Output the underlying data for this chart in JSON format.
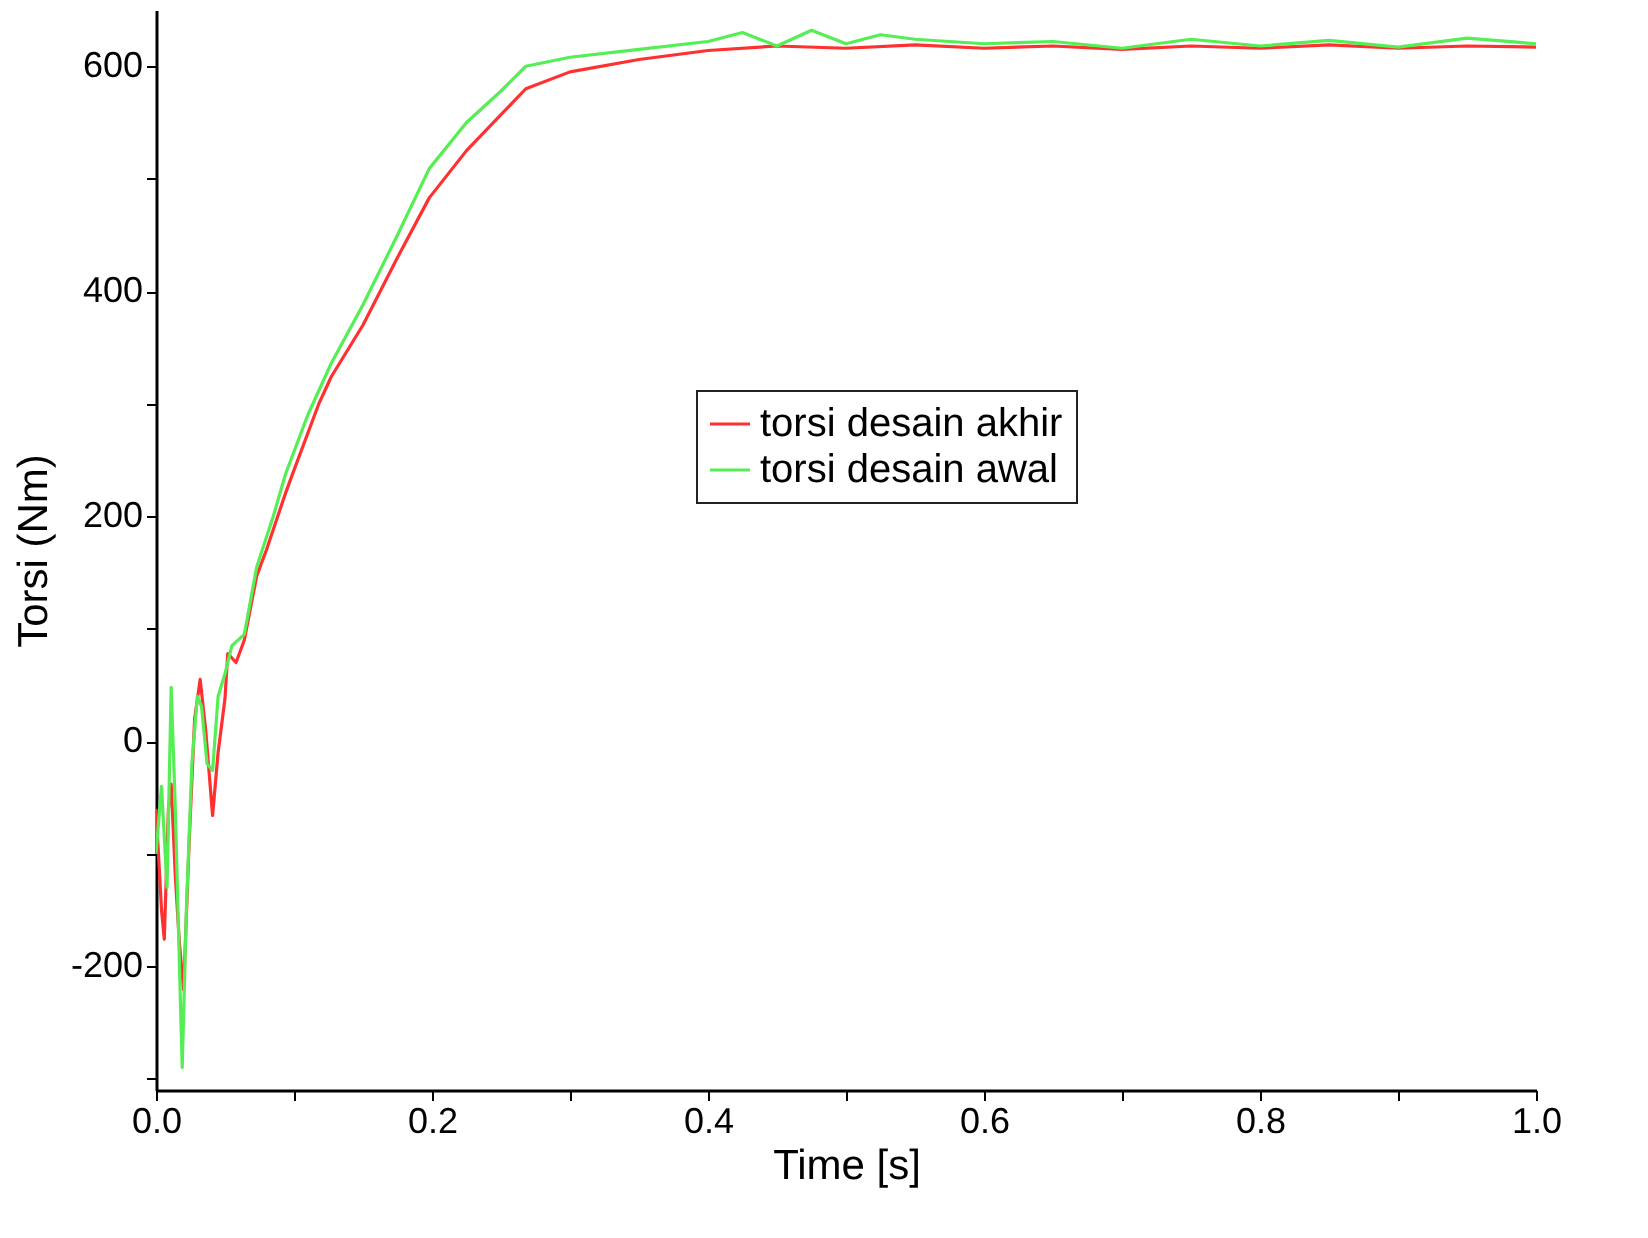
{
  "chart_data": {
    "type": "line",
    "xlabel": "Time [s]",
    "ylabel": "Torsi (Nm)",
    "xlim": [
      0,
      1.0
    ],
    "ylim": [
      -310,
      650
    ],
    "xticks": [
      {
        "value": 0,
        "label": "0.0"
      },
      {
        "value": 0.1,
        "label": null
      },
      0.2,
      {
        "value": 0.3,
        "label": null
      },
      0.4,
      {
        "value": 0.5,
        "label": null
      },
      0.6,
      {
        "value": 0.7,
        "label": null
      },
      0.8,
      {
        "value": 0.9,
        "label": null
      },
      {
        "value": 1.0,
        "label": "1.0"
      }
    ],
    "yticks": [
      {
        "value": -300,
        "label": null
      },
      -200,
      {
        "value": -100,
        "label": null
      },
      0,
      {
        "value": 100,
        "label": null
      },
      200,
      {
        "value": 300,
        "label": null
      },
      400,
      {
        "value": 500,
        "label": null
      },
      600
    ],
    "grid": false,
    "legend": "center",
    "line_style": "solid",
    "marker": "none",
    "series": [
      {
        "name": "torsi desain akhir",
        "color": "#ff3030",
        "x": [
          0,
          0.004,
          0.006,
          0.009,
          0.011,
          0.014,
          0.017,
          0.02,
          0.024,
          0.028,
          0.032,
          0.036,
          0.041,
          0.045,
          0.05,
          0.052,
          0.058,
          0.064,
          0.073,
          0.08,
          0.094,
          0.1,
          0.118,
          0.127,
          0.15,
          0.175,
          0.198,
          0.225,
          0.25,
          0.268,
          0.3,
          0.35,
          0.4,
          0.45,
          0.5,
          0.55,
          0.6,
          0.65,
          0.7,
          0.75,
          0.8,
          0.85,
          0.9,
          0.95,
          1.0
        ],
        "values": [
          -60,
          -150,
          -176,
          -60,
          -38,
          -120,
          -180,
          -221,
          -90,
          20,
          55,
          10,
          -66,
          -10,
          38,
          78,
          70,
          90,
          147,
          170,
          221,
          241,
          300,
          324,
          370,
          430,
          483,
          525,
          557,
          580,
          595,
          606,
          614,
          618,
          616,
          619,
          616,
          618,
          615,
          618,
          616,
          619,
          616,
          618,
          617
        ]
      },
      {
        "name": "torsi desain awal",
        "color": "#55ee55",
        "x": [
          0,
          0.004,
          0.008,
          0.011,
          0.014,
          0.017,
          0.019,
          0.022,
          0.026,
          0.03,
          0.033,
          0.037,
          0.041,
          0.045,
          0.05,
          0.055,
          0.064,
          0.073,
          0.085,
          0.094,
          0.11,
          0.127,
          0.15,
          0.175,
          0.198,
          0.225,
          0.25,
          0.268,
          0.3,
          0.35,
          0.4,
          0.425,
          0.45,
          0.475,
          0.5,
          0.525,
          0.55,
          0.6,
          0.65,
          0.7,
          0.75,
          0.8,
          0.85,
          0.9,
          0.95,
          1.0
        ],
        "values": [
          -100,
          -40,
          -130,
          48,
          -60,
          -200,
          -290,
          -150,
          -20,
          40,
          31,
          -20,
          -26,
          40,
          60,
          85,
          95,
          155,
          200,
          238,
          290,
          336,
          388,
          450,
          509,
          550,
          578,
          600,
          608,
          615,
          622,
          630,
          618,
          632,
          620,
          628,
          624,
          620,
          622,
          616,
          624,
          618,
          623,
          617,
          625,
          620
        ]
      }
    ]
  }
}
